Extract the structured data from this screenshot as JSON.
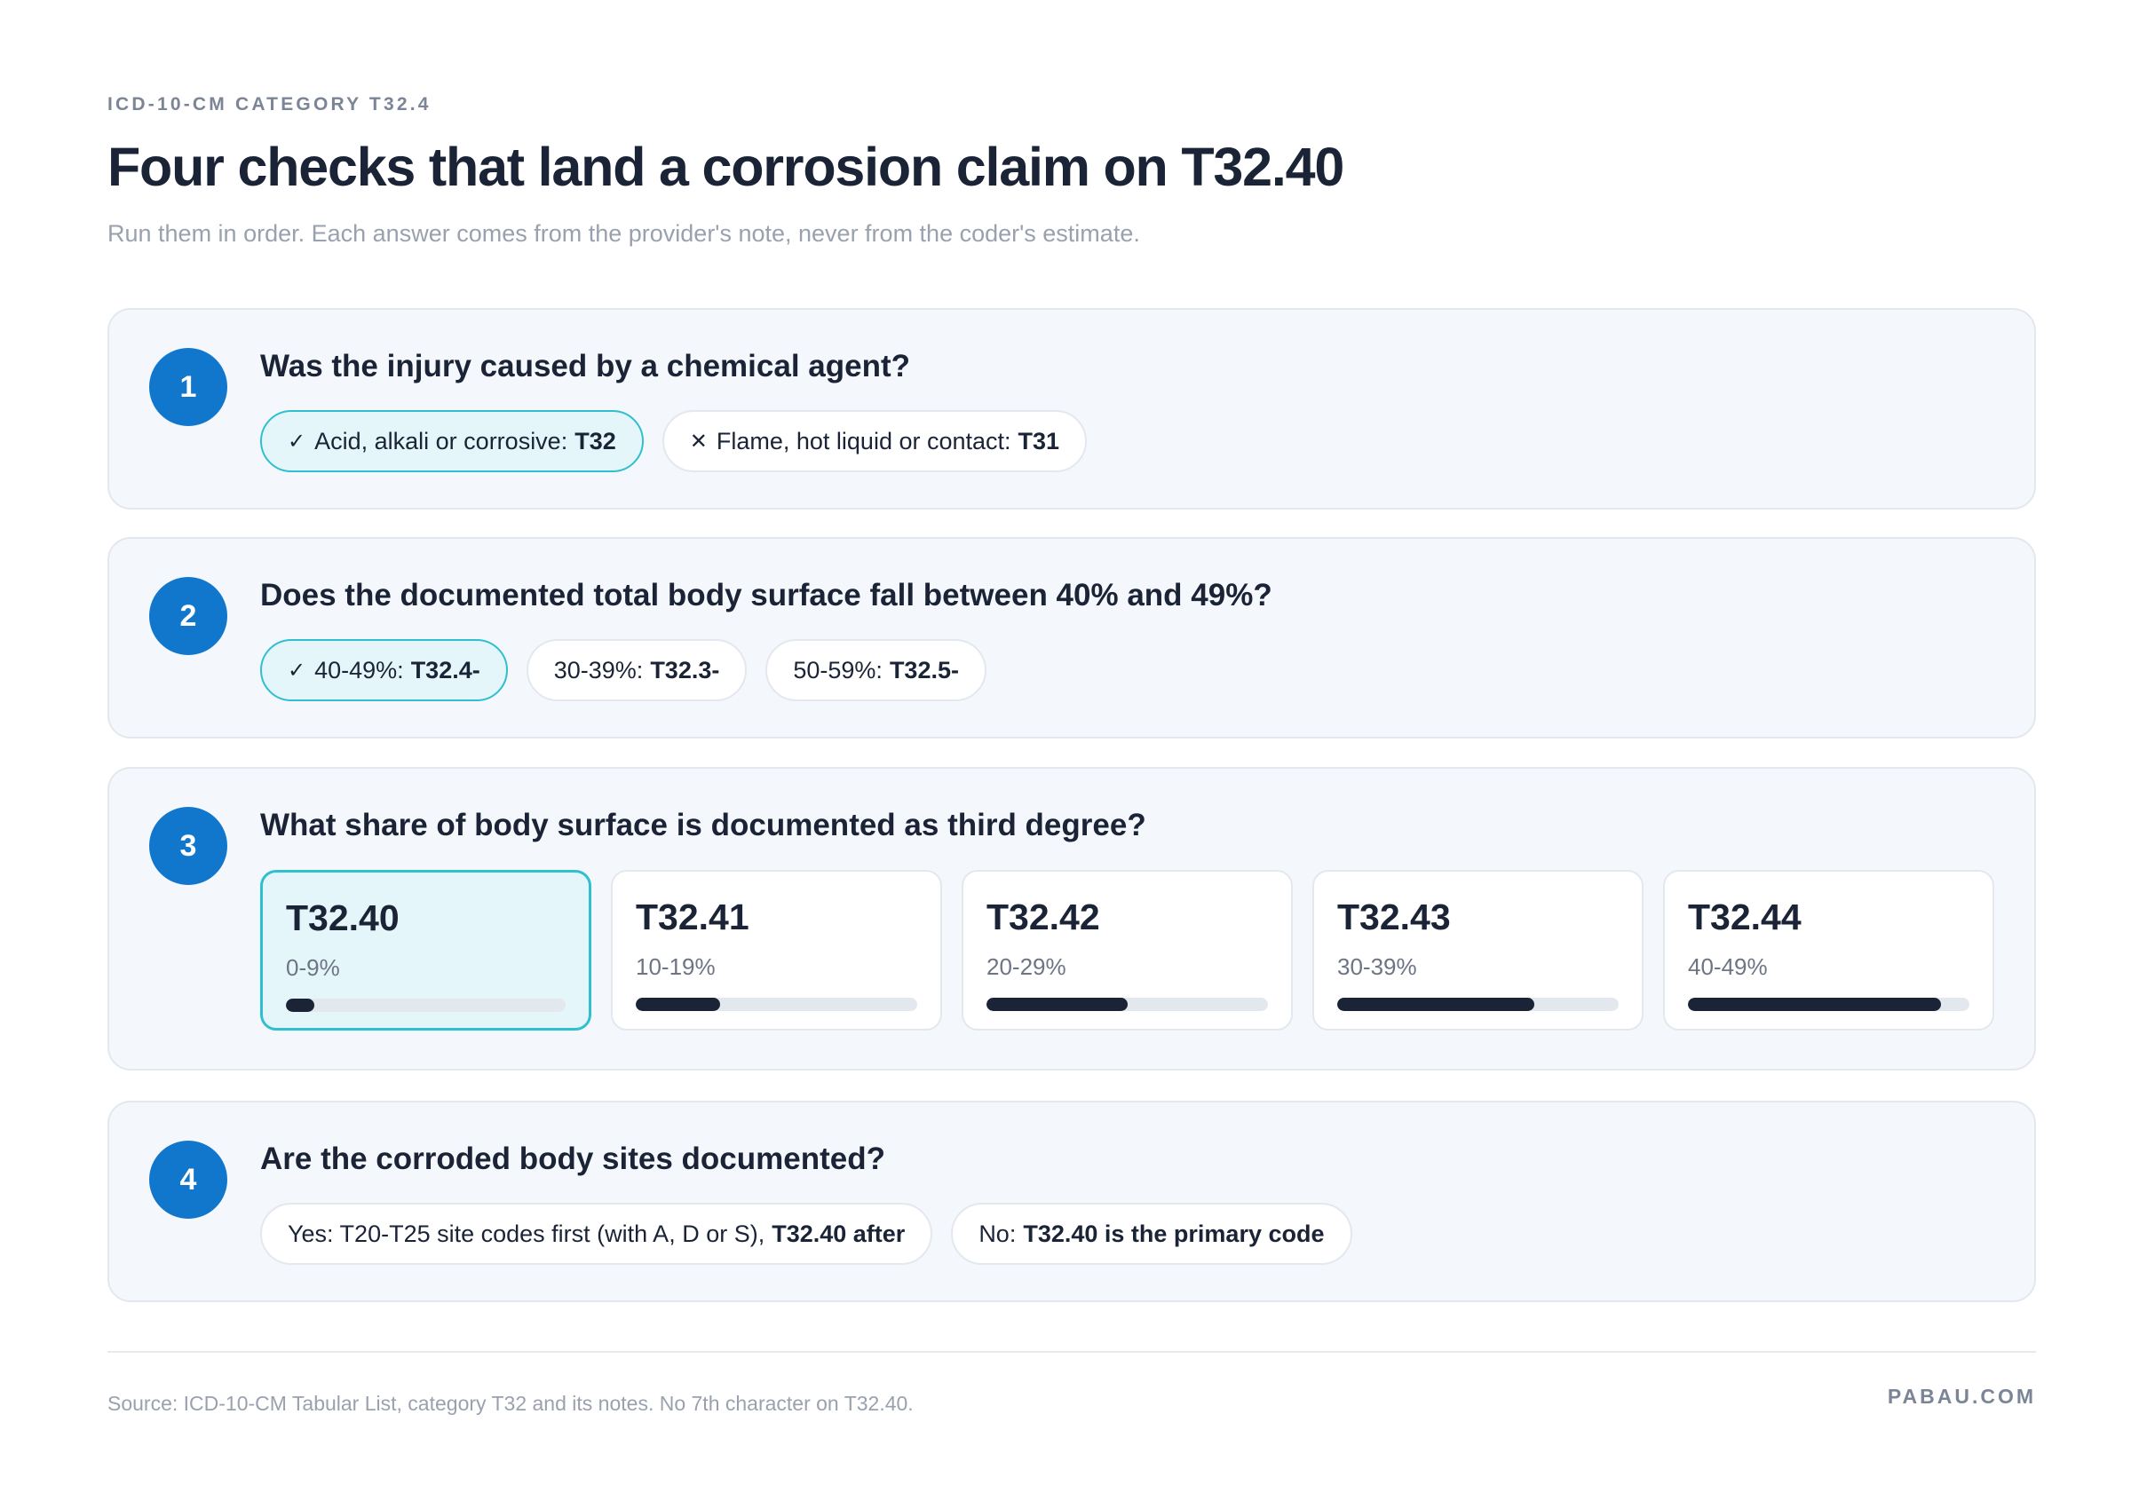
{
  "header": {
    "eyebrow": "ICD-10-CM CATEGORY T32.4",
    "title": "Four checks that land a corrosion claim on T32.40",
    "subtitle": "Run them in order. Each answer comes from the provider's note, never from the coder's estimate."
  },
  "steps": [
    {
      "number": "1",
      "question": "Was the injury caused by a chemical agent?",
      "options": [
        {
          "mark": "✓",
          "label": "Acid, alkali or corrosive:",
          "code": "T32",
          "selected": true
        },
        {
          "mark": "✕",
          "label": "Flame, hot liquid or contact:",
          "code": "T31",
          "selected": false
        }
      ]
    },
    {
      "number": "2",
      "question": "Does the documented total body surface fall between 40% and 49%?",
      "options": [
        {
          "mark": "✓",
          "label": "40-49%:",
          "code": "T32.4-",
          "selected": true
        },
        {
          "mark": "",
          "label": "30-39%:",
          "code": "T32.3-",
          "selected": false
        },
        {
          "mark": "",
          "label": "50-59%:",
          "code": "T32.5-",
          "selected": false
        }
      ]
    },
    {
      "number": "3",
      "question": "What share of body surface is documented as third degree?",
      "tiles": [
        {
          "code": "T32.40",
          "range": "0-9%",
          "level": 0.1,
          "selected": true
        },
        {
          "code": "T32.41",
          "range": "10-19%",
          "level": 0.3,
          "selected": false
        },
        {
          "code": "T32.42",
          "range": "20-29%",
          "level": 0.5,
          "selected": false
        },
        {
          "code": "T32.43",
          "range": "30-39%",
          "level": 0.7,
          "selected": false
        },
        {
          "code": "T32.44",
          "range": "40-49%",
          "level": 0.9,
          "selected": false
        }
      ]
    },
    {
      "number": "4",
      "question": "Are the corroded body sites documented?",
      "options": [
        {
          "mark": "",
          "label": "Yes: T20-T25 site codes first (with A, D or S),",
          "code": "T32.40 after",
          "selected": false
        },
        {
          "mark": "",
          "label": "No:",
          "code": "T32.40 is the primary code",
          "selected": false
        }
      ]
    }
  ],
  "footer": {
    "source": "Source: ICD-10-CM Tabular List, category T32 and its notes. No 7th character on T32.40.",
    "brand": "PABAU.COM"
  },
  "colors": {
    "accent": "#1177cc",
    "selected_border": "#2fbfcf",
    "selected_fill": "#e4f6f9",
    "bar": "#1b2436"
  }
}
